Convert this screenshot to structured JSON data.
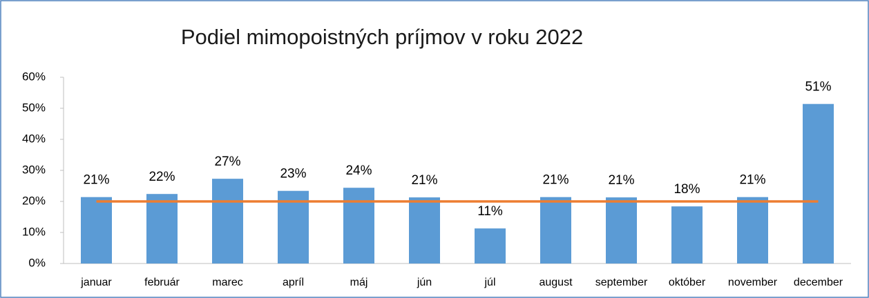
{
  "chart_data": {
    "type": "bar",
    "title": "Podiel mimopoistných príjmov v roku 2022",
    "categories": [
      "januar",
      "február",
      "marec",
      "apríl",
      "máj",
      "jún",
      "júl",
      "august",
      "september",
      "október",
      "november",
      "december"
    ],
    "values": [
      21.4,
      22.4,
      27.3,
      23.4,
      24.4,
      21.3,
      11.3,
      21.4,
      21.3,
      18.4,
      21.4,
      51.4
    ],
    "value_labels": [
      "21%",
      "22%",
      "27%",
      "23%",
      "24%",
      "21%",
      "11%",
      "21%",
      "21%",
      "18%",
      "21%",
      "51%"
    ],
    "color": "#5b9bd5",
    "hline": {
      "value": 20,
      "color": "#ed7d31"
    },
    "ylim": [
      0,
      60
    ],
    "yticks": [
      {
        "value": 0,
        "label": "0%"
      },
      {
        "value": 10,
        "label": "10%"
      },
      {
        "value": 20,
        "label": "20%"
      },
      {
        "value": 30,
        "label": "30%"
      },
      {
        "value": 40,
        "label": "40%"
      },
      {
        "value": 50,
        "label": "50%"
      },
      {
        "value": 60,
        "label": "60%"
      }
    ]
  }
}
